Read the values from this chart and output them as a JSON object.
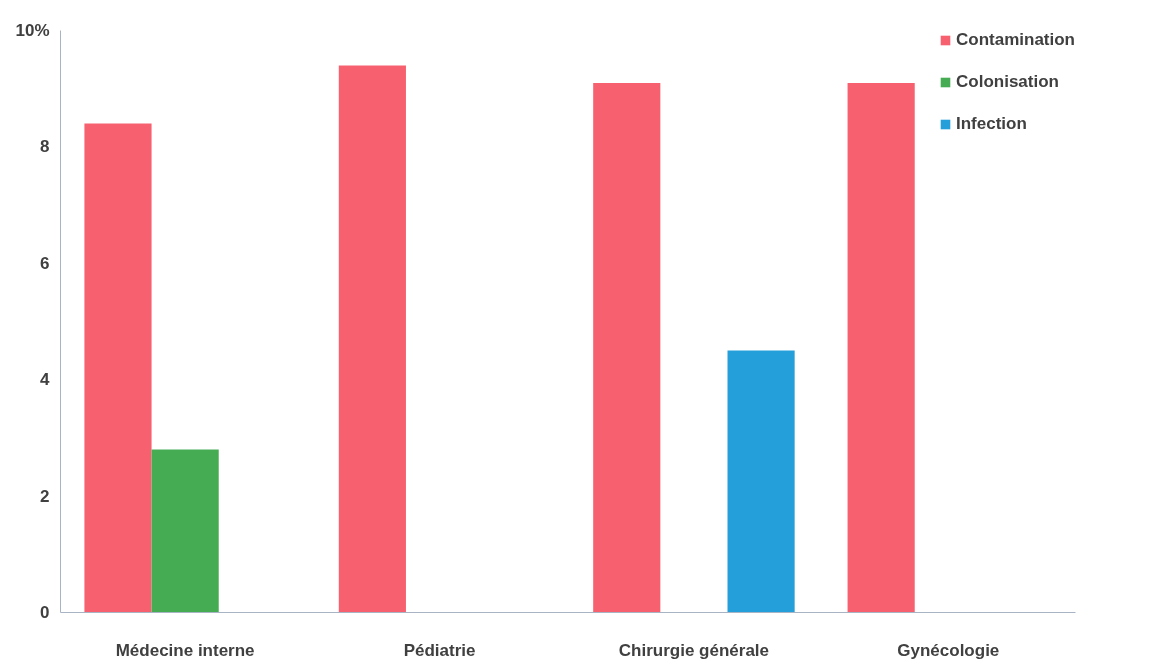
{
  "chart_data": {
    "type": "bar",
    "categories": [
      "Médecine interne",
      "Pédiatrie",
      "Chirurgie générale",
      "Gynécologie"
    ],
    "series": [
      {
        "name": "Contamination",
        "color": "#f7606e",
        "values": [
          8.4,
          9.4,
          9.1,
          9.1
        ]
      },
      {
        "name": "Colonisation",
        "color": "#46ac54",
        "values": [
          2.8,
          null,
          null,
          null
        ]
      },
      {
        "name": "Infection",
        "color": "#259fd9",
        "values": [
          null,
          null,
          4.5,
          null
        ]
      }
    ],
    "ylim": [
      0,
      10
    ],
    "yticks": [
      0,
      2,
      4,
      6,
      8,
      {
        "value": 10,
        "label": "10%"
      }
    ],
    "grid": false,
    "legend": "top right"
  }
}
